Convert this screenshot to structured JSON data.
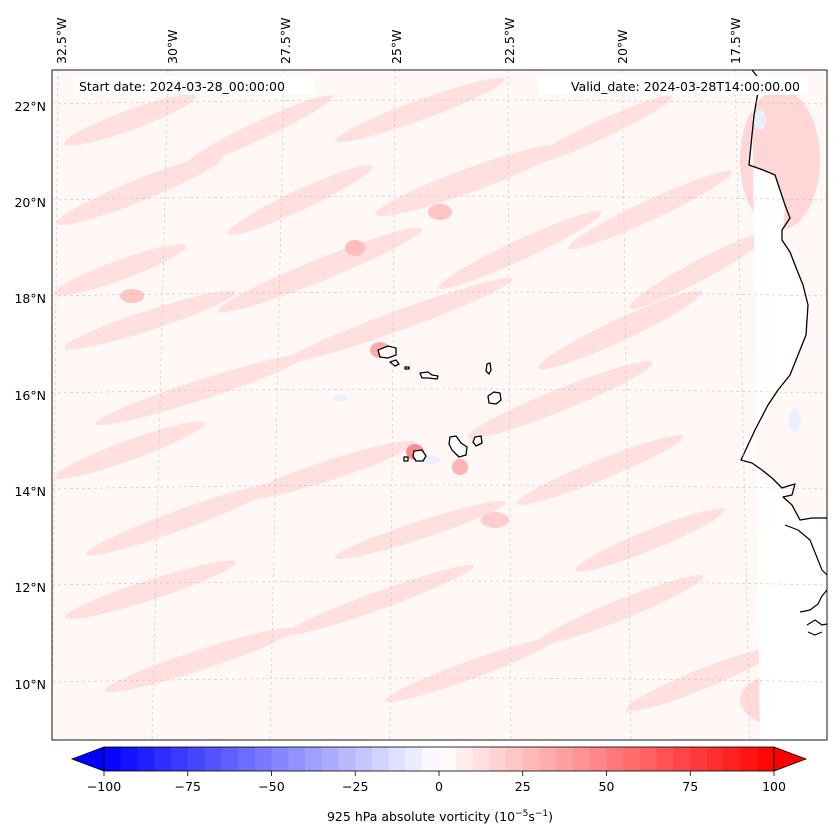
{
  "header": {
    "start_date": "Start date: 2024-03-28_00:00:00",
    "valid_date": "Valid_date: 2024-03-28T14:00:00.00"
  },
  "map": {
    "field": "925 hPa absolute vorticity",
    "lon_labels": [
      "32.5°W",
      "30°W",
      "27.5°W",
      "25°W",
      "22.5°W",
      "20°W",
      "17.5°W"
    ],
    "lat_labels": [
      "22°N",
      "20°N",
      "18°N",
      "16°N",
      "14°N",
      "12°N",
      "10°N"
    ],
    "gridlines": true,
    "coastline_color": "#000000"
  },
  "colorbar": {
    "label_text": "925 hPa absolute vorticity (10",
    "label_exp1": "−5",
    "label_mid": "s",
    "label_exp2": "−1",
    "label_close": ")",
    "ticks": [
      "−100",
      "−75",
      "−50",
      "−25",
      "0",
      "25",
      "50",
      "75",
      "100"
    ],
    "range": [
      -100,
      100
    ],
    "levels": 40,
    "extend": "both",
    "colormap": "bwr",
    "color_min": "#0000ff",
    "color_mid": "#ffffff",
    "color_max": "#ff0000"
  }
}
